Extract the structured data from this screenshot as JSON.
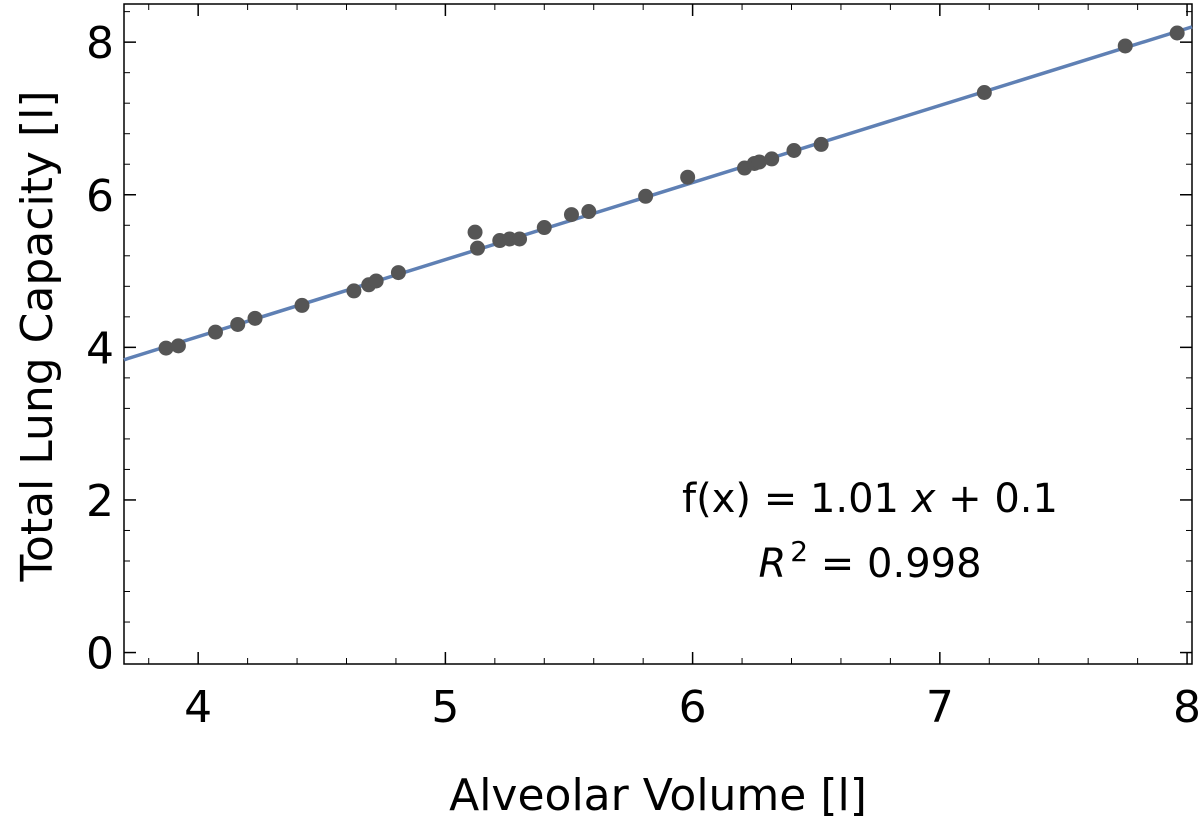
{
  "chart_data": {
    "type": "scatter",
    "xlabel": "Alveolar Volume [l]",
    "ylabel": "Total Lung Capacity [l]",
    "xlim": [
      3.7,
      8.02
    ],
    "ylim": [
      -0.15,
      8.5
    ],
    "x_ticks": [
      4,
      5,
      6,
      7,
      8
    ],
    "y_ticks": [
      0,
      2,
      4,
      6,
      8
    ],
    "grid": false,
    "colors": {
      "points": "#555555",
      "fit_line": "#5f80b4",
      "frame": "#000000"
    },
    "series": [
      {
        "x": [
          3.87,
          3.92,
          4.07,
          4.16,
          4.23,
          4.42,
          4.63,
          4.69,
          4.72,
          4.81,
          5.12,
          5.13,
          5.22,
          5.26,
          5.3,
          5.4,
          5.51,
          5.58,
          5.81,
          5.98,
          6.21,
          6.25,
          6.27,
          6.32,
          6.41,
          6.52,
          7.18,
          7.75,
          7.96
        ],
        "y": [
          3.99,
          4.02,
          4.2,
          4.3,
          4.38,
          4.55,
          4.74,
          4.82,
          4.87,
          4.98,
          5.51,
          5.3,
          5.4,
          5.42,
          5.42,
          5.57,
          5.74,
          5.78,
          5.98,
          6.23,
          6.35,
          6.41,
          6.43,
          6.47,
          6.58,
          6.66,
          7.34,
          7.95,
          8.12
        ]
      }
    ],
    "fit": {
      "slope": 1.01,
      "intercept": 0.1,
      "x_range": [
        3.7,
        8.02
      ],
      "equation_prefix": "f(x) = 1.01 ",
      "equation_var": "x",
      "equation_suffix": " + 0.1",
      "r2_var": "R",
      "r2_exp": "2",
      "r2_suffix": " = 0.998"
    }
  }
}
